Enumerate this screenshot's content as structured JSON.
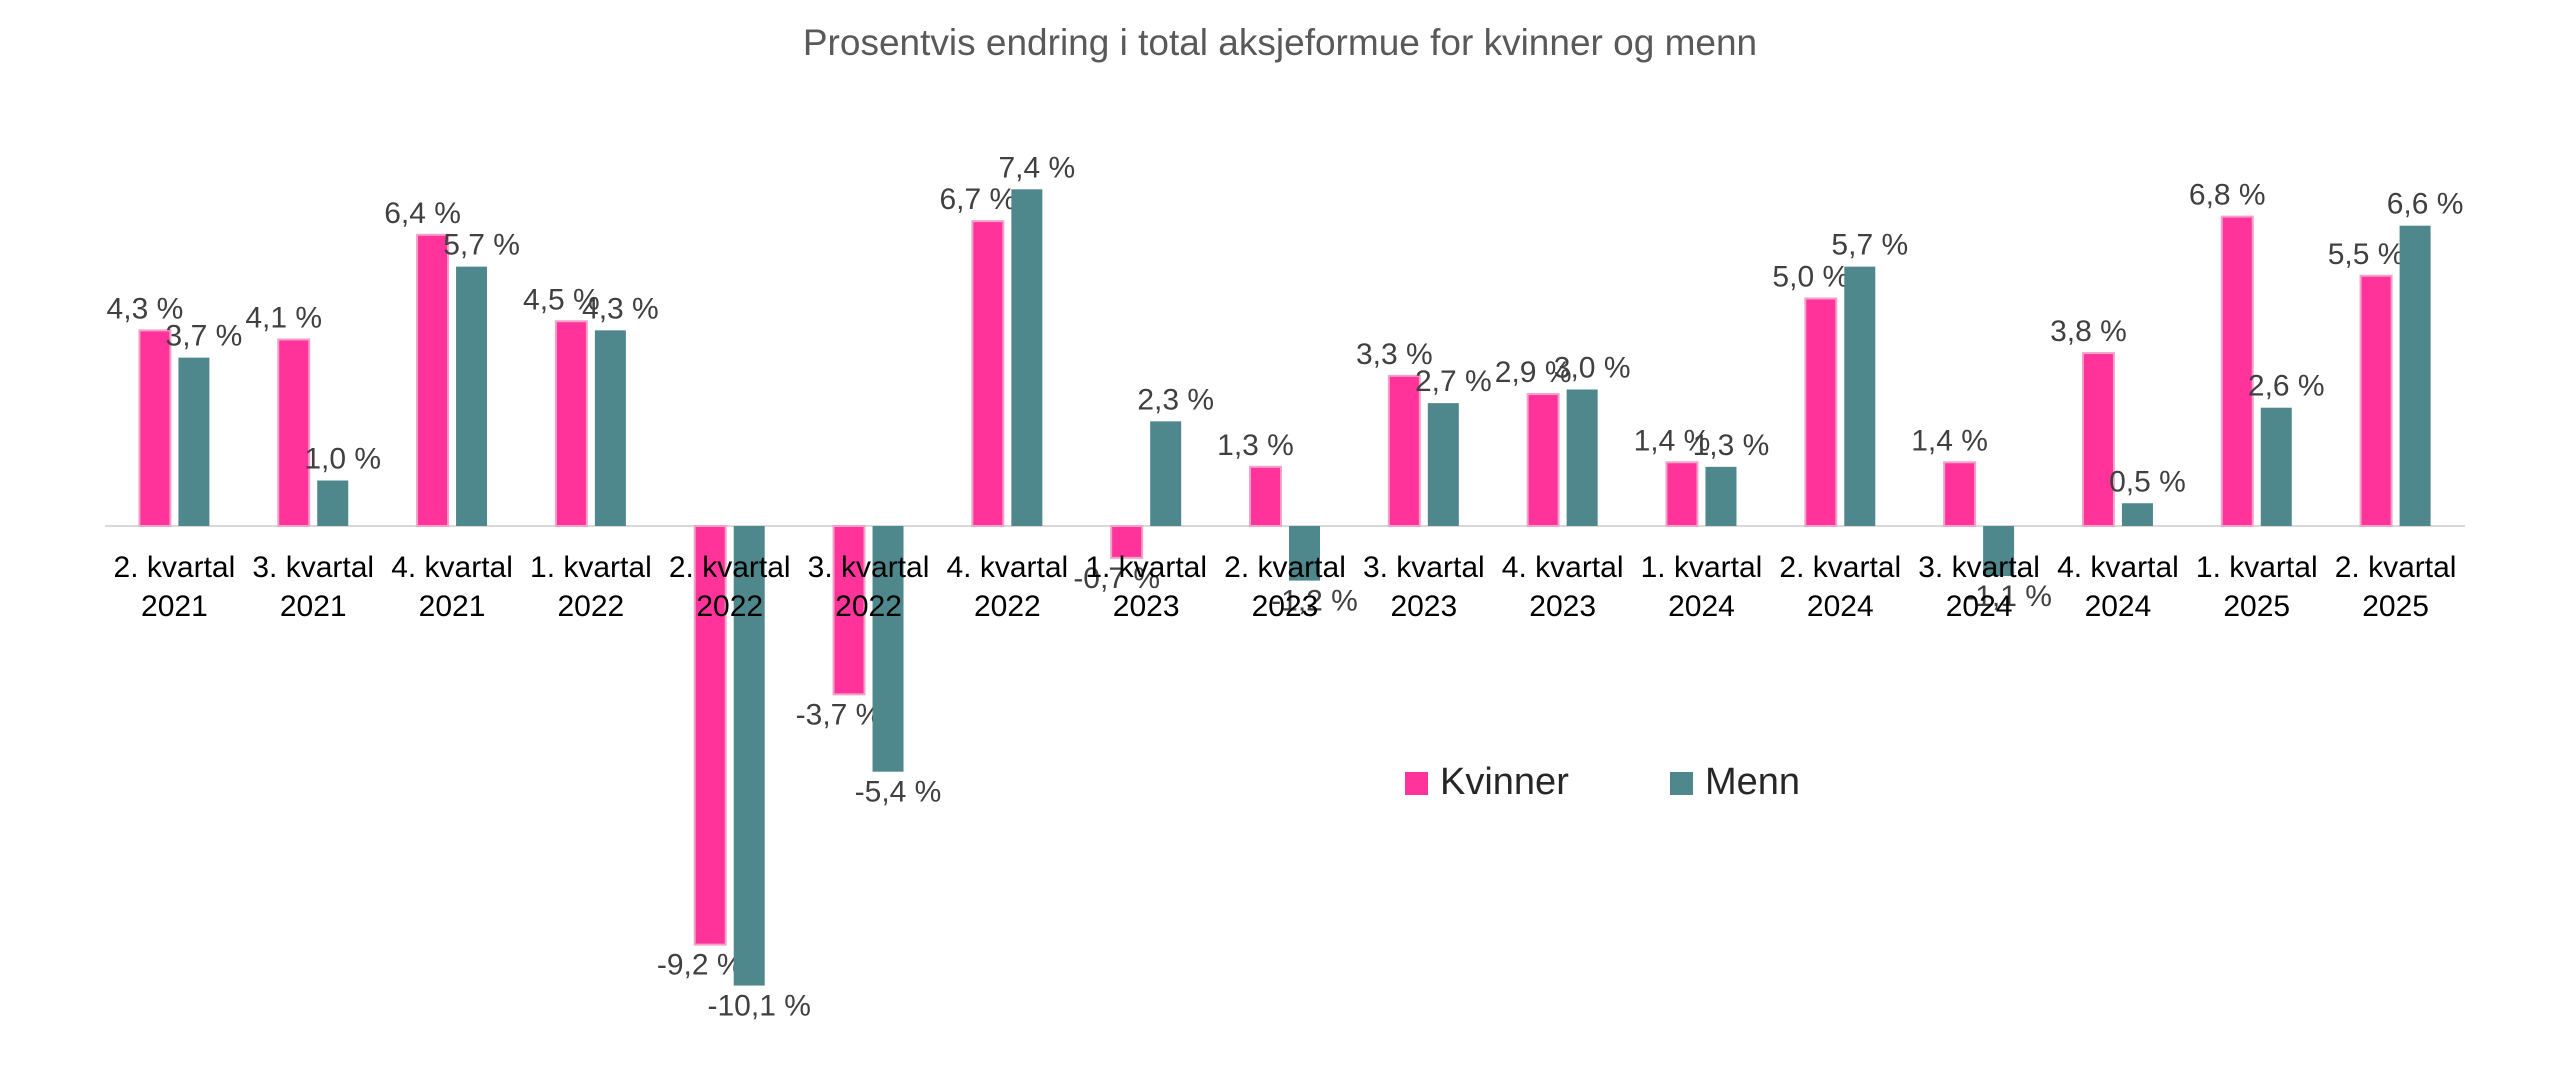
{
  "chart_data": {
    "type": "bar",
    "title": "Prosentvis endring i total aksjeformue for kvinner og menn",
    "xlabel": "",
    "ylabel": "",
    "categories": [
      [
        "2. kvartal",
        "2021"
      ],
      [
        "3. kvartal",
        "2021"
      ],
      [
        "4. kvartal",
        "2021"
      ],
      [
        "1. kvartal",
        "2022"
      ],
      [
        "2. kvartal",
        "2022"
      ],
      [
        "3. kvartal",
        "2022"
      ],
      [
        "4. kvartal",
        "2022"
      ],
      [
        "1. kvartal",
        "2023"
      ],
      [
        "2. kvartal",
        "2023"
      ],
      [
        "3. kvartal",
        "2023"
      ],
      [
        "4. kvartal",
        "2023"
      ],
      [
        "1. kvartal",
        "2024"
      ],
      [
        "2. kvartal",
        "2024"
      ],
      [
        "3. kvartal",
        "2024"
      ],
      [
        "4. kvartal",
        "2024"
      ],
      [
        "1. kvartal",
        "2025"
      ],
      [
        "2. kvartal",
        "2025"
      ]
    ],
    "series": [
      {
        "name": "Kvinner",
        "color": "#FF3399",
        "values": [
          4.3,
          4.1,
          6.4,
          4.5,
          -9.2,
          -3.7,
          6.7,
          -0.7,
          1.3,
          3.3,
          2.9,
          1.4,
          5.0,
          1.4,
          3.8,
          6.8,
          5.5
        ],
        "labels": [
          "4,3 %",
          "4,1 %",
          "6,4 %",
          "4,5 %",
          "-9,2 %",
          "-3,7 %",
          "6,7 %",
          "-0,7 %",
          "1,3 %",
          "3,3 %",
          "2,9 %",
          "1,4 %",
          "5,0 %",
          "1,4 %",
          "3,8 %",
          "6,8 %",
          "5,5 %"
        ]
      },
      {
        "name": "Menn",
        "color": "#4E878C",
        "values": [
          3.7,
          1.0,
          5.7,
          4.3,
          -10.1,
          -5.4,
          7.4,
          2.3,
          -1.2,
          2.7,
          3.0,
          1.3,
          5.7,
          -1.1,
          0.5,
          2.6,
          6.6
        ],
        "labels": [
          "3,7 %",
          "1,0 %",
          "5,7 %",
          "4,3 %",
          "-10,1 %",
          "-5,4 %",
          "7,4 %",
          "2,3 %",
          "-1,2 %",
          "2,7 %",
          "3,0 %",
          "1,3 %",
          "5,7 %",
          "-1,1 %",
          "0,5 %",
          "2,6 %",
          "6,6 %"
        ]
      }
    ],
    "legend": {
      "position": "bottom-right"
    },
    "grid": false
  }
}
